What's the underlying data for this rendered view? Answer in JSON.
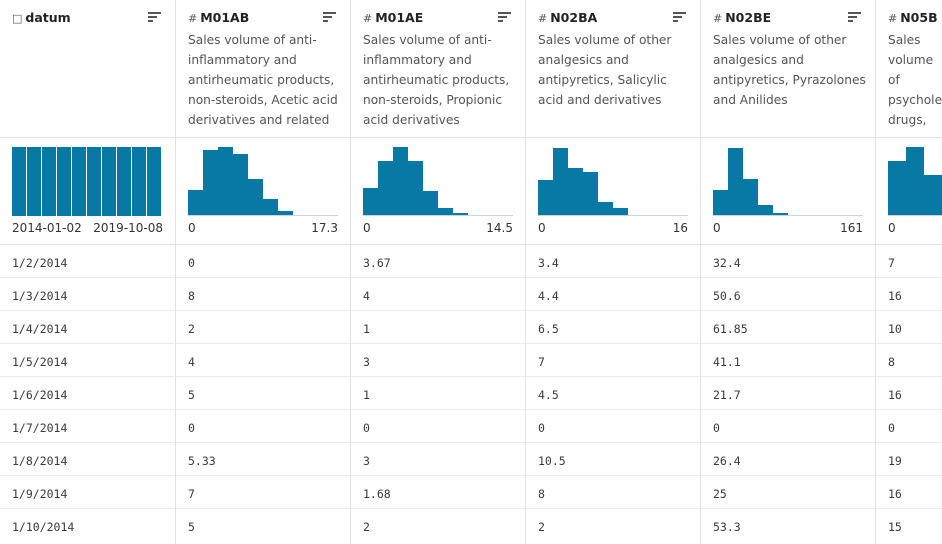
{
  "columns": [
    {
      "name": "datum",
      "icon": "calendar-icon",
      "glyph": "□",
      "desc": "",
      "range_min": "2014-01-02",
      "range_max": "2019-10-08",
      "hist": [
        1,
        1,
        1,
        1,
        1,
        1,
        1,
        1,
        1,
        1
      ],
      "values": [
        "1/2/2014",
        "1/3/2014",
        "1/4/2014",
        "1/5/2014",
        "1/6/2014",
        "1/7/2014",
        "1/8/2014",
        "1/9/2014",
        "1/10/2014"
      ]
    },
    {
      "name": "M01AB",
      "icon": "hash-icon",
      "glyph": "#",
      "desc": "Sales volume of anti-inflammatory and antirheumatic products, non-steroids, Acetic acid derivatives and related",
      "range_min": "0",
      "range_max": "17.3",
      "hist": [
        0.37,
        0.96,
        1.0,
        0.9,
        0.53,
        0.25,
        0.07,
        0.015,
        0.015,
        0
      ],
      "values": [
        "0",
        "8",
        "2",
        "4",
        "5",
        "0",
        "5.33",
        "7",
        "5"
      ]
    },
    {
      "name": "M01AE",
      "icon": "hash-icon",
      "glyph": "#",
      "desc": "Sales volume of anti-inflammatory and antirheumatic products, non-steroids, Propionic acid derivatives",
      "range_min": "0",
      "range_max": "14.5",
      "hist": [
        0.4,
        0.8,
        1.0,
        0.8,
        0.36,
        0.12,
        0.05,
        0.02,
        0.01,
        0
      ],
      "values": [
        "3.67",
        "4",
        "1",
        "3",
        "1",
        "0",
        "3",
        "1.68",
        "2"
      ]
    },
    {
      "name": "N02BA",
      "icon": "hash-icon",
      "glyph": "#",
      "desc": "Sales volume of other analgesics and antipyretics, Salicylic acid and derivatives",
      "range_min": "0",
      "range_max": "16",
      "hist": [
        0.52,
        0.99,
        0.7,
        0.64,
        0.2,
        0.12,
        0.02,
        0.01,
        0,
        0
      ],
      "values": [
        "3.4",
        "4.4",
        "6.5",
        "7",
        "4.5",
        "0",
        "10.5",
        "8",
        "2"
      ]
    },
    {
      "name": "N02BE",
      "icon": "hash-icon",
      "glyph": "#",
      "desc": "Sales volume of other analgesics and antipyretics, Pyrazolones and Anilides",
      "range_min": "0",
      "range_max": "161",
      "hist": [
        0.38,
        0.99,
        0.54,
        0.16,
        0.05,
        0.01,
        0.01,
        0,
        0,
        0
      ],
      "values": [
        "32.4",
        "50.6",
        "61.85",
        "41.1",
        "21.7",
        "0",
        "26.4",
        "25",
        "53.3"
      ]
    },
    {
      "name": "N05B",
      "icon": "hash-icon",
      "glyph": "#",
      "desc": "Sales volume of psycholeptics drugs, Anxiolytic drugs",
      "range_min": "0",
      "range_max": "",
      "hist": [
        0.8,
        1.0,
        0.6
      ],
      "values": [
        "7",
        "16",
        "10",
        "8",
        "16",
        "0",
        "19",
        "16",
        "15"
      ]
    }
  ]
}
